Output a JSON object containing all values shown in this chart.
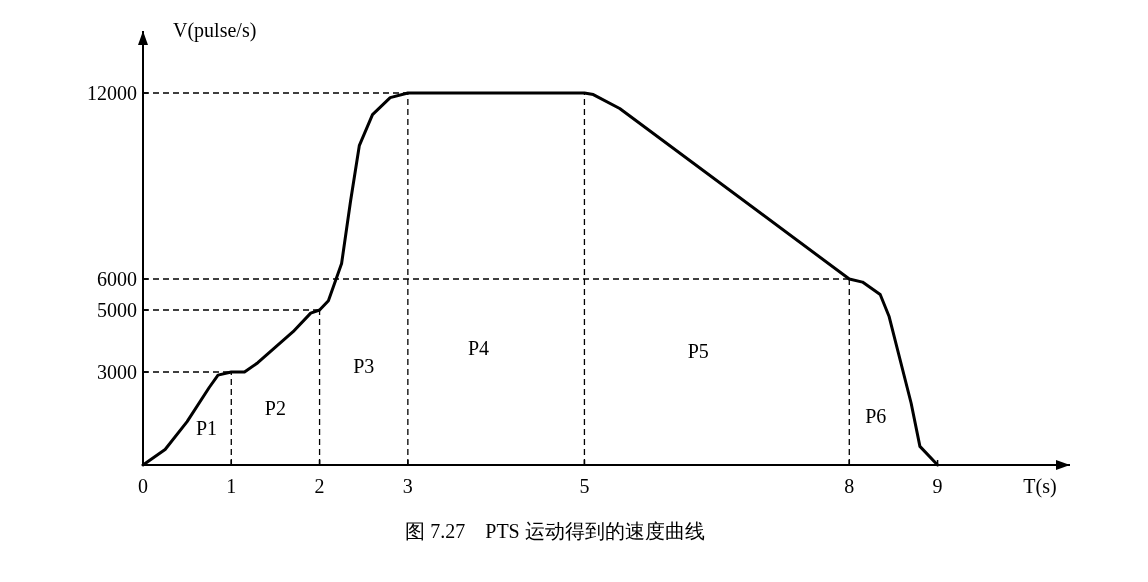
{
  "chart_data": {
    "type": "line",
    "title": "图 7.27　PTS 运动得到的速度曲线",
    "xlabel": "T(s)",
    "ylabel": "V(pulse/s)",
    "x": [
      0,
      0.25,
      0.5,
      0.75,
      0.85,
      1,
      1.15,
      1.3,
      1.7,
      1.9,
      2,
      2.1,
      2.25,
      2.35,
      2.45,
      2.6,
      2.8,
      3,
      5,
      5.1,
      5.4,
      8,
      8.15,
      8.35,
      8.45,
      8.7,
      8.8,
      9
    ],
    "series": [
      {
        "color": "#000000",
        "values": [
          0,
          500,
          1400,
          2500,
          2900,
          3000,
          3000,
          3300,
          4300,
          4900,
          5000,
          5300,
          6500,
          8500,
          10300,
          11300,
          11850,
          12000,
          12000,
          11950,
          11500,
          6000,
          5900,
          5500,
          4800,
          2000,
          600,
          0
        ]
      }
    ],
    "xlim": [
      0,
      10.5
    ],
    "ylim": [
      0,
      14000
    ],
    "xticks": [
      0,
      1,
      2,
      3,
      5,
      8,
      9
    ],
    "yticks": [
      3000,
      5000,
      6000,
      12000
    ],
    "marker": "none",
    "line_style": "solid",
    "ref_lines": [
      {
        "axis": "x",
        "value": 1,
        "line_style": "dashed"
      },
      {
        "axis": "x",
        "value": 2,
        "line_style": "dashed"
      },
      {
        "axis": "x",
        "value": 3,
        "line_style": "dashed"
      },
      {
        "axis": "x",
        "value": 5,
        "line_style": "dashed"
      },
      {
        "axis": "x",
        "value": 8,
        "line_style": "dashed"
      },
      {
        "axis": "y",
        "value": 3000,
        "line_style": "dashed"
      },
      {
        "axis": "y",
        "value": 5000,
        "line_style": "dashed"
      },
      {
        "axis": "y",
        "value": 6000,
        "line_style": "dashed"
      },
      {
        "axis": "y",
        "value": 12000,
        "line_style": "dashed"
      }
    ],
    "annotations": [
      "P1",
      "P2",
      "P3",
      "P4",
      "P5",
      "P6"
    ]
  }
}
